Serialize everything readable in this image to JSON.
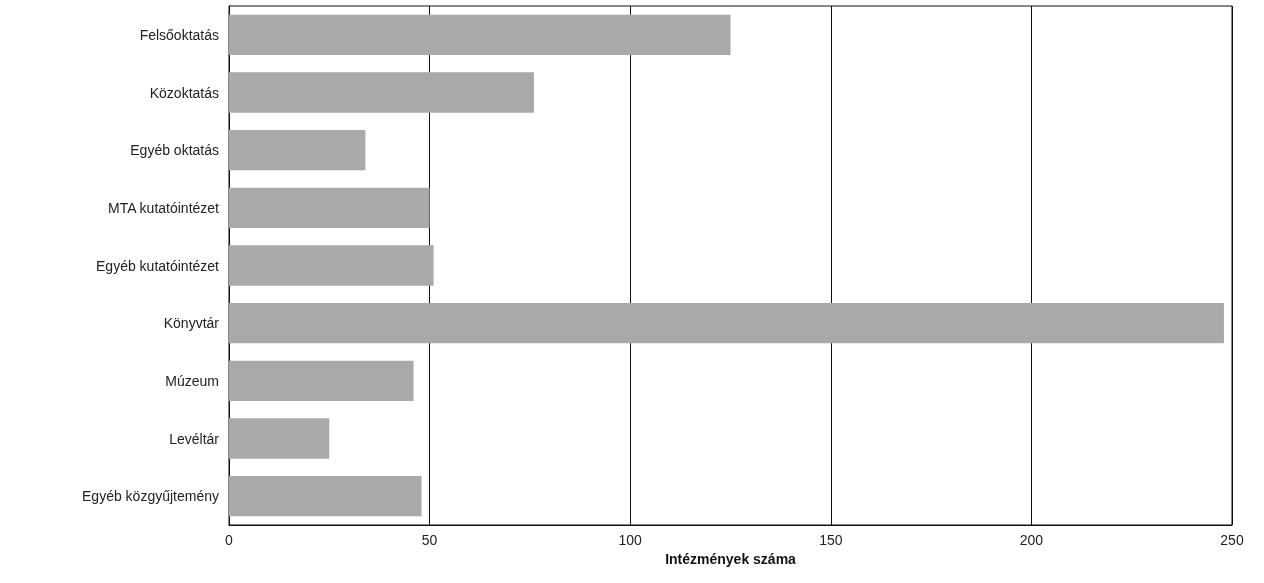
{
  "chart_data": {
    "type": "bar",
    "orientation": "horizontal",
    "xlabel": "Intézmények száma",
    "categories": [
      "Felsőoktatás",
      "Közoktatás",
      "Egyéb oktatás",
      "MTA kutatóintézet",
      "Egyéb kutatóintézet",
      "Könyvtár",
      "Múzeum",
      "Levéltár",
      "Egyéb közgyűjtemény"
    ],
    "values": [
      125,
      76,
      34,
      50,
      51,
      248,
      46,
      25,
      48
    ],
    "color": "#a9a9a9",
    "xlim": [
      0,
      250
    ],
    "xticks": [
      0,
      50,
      100,
      150,
      200,
      250
    ],
    "grid": "x"
  }
}
